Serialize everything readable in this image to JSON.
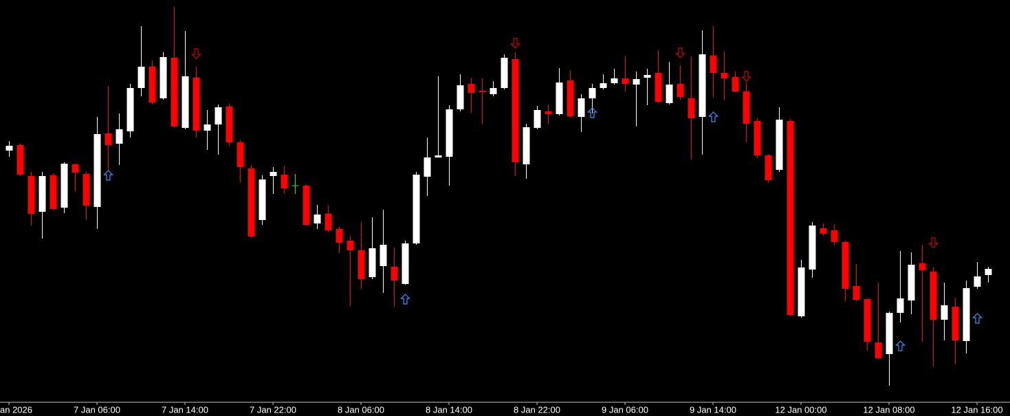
{
  "chart_data": {
    "type": "candlestick",
    "categories": [
      "an 2026",
      null,
      null,
      null,
      null,
      null,
      null,
      null,
      "7 Jan 06:00",
      null,
      null,
      null,
      null,
      null,
      null,
      null,
      "7 Jan 14:00",
      null,
      null,
      null,
      null,
      null,
      null,
      null,
      "7 Jan 22:00",
      null,
      null,
      null,
      null,
      null,
      null,
      null,
      "8 Jan 06:00",
      null,
      null,
      null,
      null,
      null,
      null,
      null,
      "8 Jan 14:00",
      null,
      null,
      null,
      null,
      null,
      null,
      null,
      "8 Jan 22:00",
      null,
      null,
      null,
      null,
      null,
      null,
      null,
      "9 Jan 06:00",
      null,
      null,
      null,
      null,
      null,
      null,
      null,
      "9 Jan 14:00",
      null,
      null,
      null,
      null,
      null,
      null,
      null,
      "12 Jan 00:00",
      null,
      null,
      null,
      null,
      null,
      null,
      null,
      "12 Jan 08:00",
      null,
      null,
      null,
      null,
      null,
      null,
      null,
      "12 Jan 16:00",
      null
    ],
    "open": [
      381,
      389,
      344,
      292,
      345,
      298,
      361,
      347,
      299,
      406,
      391,
      409,
      472,
      503,
      457,
      516,
      414,
      487,
      410,
      419,
      445,
      393,
      355,
      280,
      344,
      346,
      330,
      330,
      275,
      289,
      267,
      250,
      236,
      197,
      213,
      212,
      187,
      246,
      343,
      371,
      372,
      441,
      478,
      468,
      463,
      472,
      514,
      361,
      414,
      438,
      434,
      483,
      430,
      457,
      472,
      479,
      486,
      477,
      487,
      494,
      450,
      478,
      457,
      430,
      519,
      494,
      488,
      467,
      424,
      374,
      353,
      424,
      140,
      208,
      268,
      265,
      248,
      184,
      165,
      102,
      85,
      145,
      163,
      217,
      205,
      135,
      154,
      104,
      183,
      200
    ],
    "high": [
      395,
      391,
      350,
      350,
      348,
      364,
      362,
      350,
      430,
      475,
      435,
      478,
      562,
      512,
      524,
      590,
      555,
      503,
      440,
      448,
      449,
      396,
      360,
      345,
      357,
      359,
      347,
      332,
      302,
      301,
      270,
      257,
      277,
      284,
      295,
      240,
      250,
      350,
      400,
      489,
      447,
      492,
      487,
      486,
      482,
      521,
      524,
      420,
      446,
      448,
      501,
      497,
      463,
      478,
      492,
      500,
      518,
      496,
      500,
      527,
      510,
      505,
      518,
      556,
      562,
      525,
      496,
      480,
      428,
      376,
      444,
      427,
      222,
      277,
      275,
      274,
      250,
      216,
      166,
      189,
      147,
      235,
      233,
      244,
      211,
      189,
      167,
      192,
      219,
      212
    ],
    "low": [
      372,
      344,
      272,
      253,
      294,
      290,
      322,
      280,
      267,
      352,
      360,
      400,
      460,
      448,
      455,
      414,
      412,
      400,
      382,
      375,
      388,
      334,
      254,
      273,
      318,
      318,
      318,
      272,
      267,
      263,
      232,
      155,
      180,
      194,
      174,
      154,
      186,
      244,
      315,
      371,
      330,
      438,
      436,
      420,
      460,
      470,
      344,
      340,
      412,
      420,
      432,
      429,
      408,
      435,
      470,
      477,
      467,
      416,
      447,
      450,
      448,
      455,
      368,
      375,
      458,
      455,
      466,
      393,
      370,
      334,
      350,
      140,
      138,
      196,
      257,
      244,
      162,
      162,
      90,
      78,
      39,
      131,
      143,
      103,
      67,
      105,
      70,
      86,
      180,
      189
    ],
    "close": [
      388,
      346,
      289,
      344,
      296,
      362,
      349,
      301,
      405,
      389,
      412,
      472,
      503,
      451,
      517,
      416,
      489,
      410,
      419,
      444,
      393,
      357,
      256,
      339,
      350,
      326,
      330,
      273,
      288,
      265,
      247,
      236,
      194,
      239,
      244,
      192,
      246,
      346,
      371,
      374,
      441,
      476,
      465,
      466,
      472,
      516,
      364,
      415,
      440,
      434,
      480,
      431,
      457,
      472,
      479,
      486,
      478,
      485,
      491,
      452,
      477,
      459,
      428,
      521,
      494,
      486,
      467,
      420,
      374,
      338,
      426,
      142,
      211,
      272,
      260,
      248,
      180,
      164,
      103,
      79,
      145,
      166,
      215,
      207,
      135,
      156,
      105,
      181,
      198,
      209
    ],
    "bull_color": "#ffffff",
    "bear_color": "#ff0000",
    "doji_color": "#00ff00",
    "up_signals": {
      "color": "#2f9bff",
      "x": [
        9,
        36,
        53,
        64,
        81,
        88
      ],
      "y": [
        345,
        165,
        436,
        430,
        97,
        137
      ]
    },
    "down_signals": {
      "color": "#d40000",
      "x": [
        17,
        46,
        61,
        67,
        84
      ],
      "y": [
        522,
        537,
        523,
        489,
        247
      ]
    },
    "ylim": [
      0,
      600
    ],
    "background": "#000000",
    "axis_color": "#c8c8c8"
  }
}
